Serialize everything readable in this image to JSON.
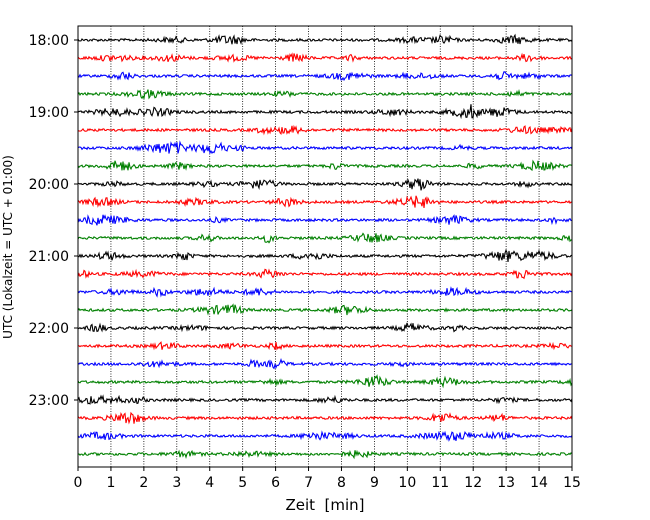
{
  "chart_data": {
    "type": "line",
    "title": "",
    "xlabel": "Zeit  [min]",
    "ylabel": "UTC (Lokalzeit = UTC + 01:00)",
    "xlim": [
      0,
      15
    ],
    "x_ticks": [
      0,
      1,
      2,
      3,
      4,
      5,
      6,
      7,
      8,
      9,
      10,
      11,
      12,
      13,
      14,
      15
    ],
    "x_tick_labels": [
      "0",
      "1",
      "2",
      "3",
      "4",
      "5",
      "6",
      "7",
      "8",
      "9",
      "10",
      "11",
      "12",
      "13",
      "14",
      "15"
    ],
    "y_tick_labels": [
      "18:00",
      "19:00",
      "20:00",
      "21:00",
      "22:00",
      "23:00"
    ],
    "y_direction": "top-to-bottom",
    "trace_interval_minutes": 15,
    "start_time": "18:00",
    "end_time": "23:45",
    "trace_start_times": [
      "18:00",
      "18:15",
      "18:30",
      "18:45",
      "19:00",
      "19:15",
      "19:30",
      "19:45",
      "20:00",
      "20:15",
      "20:30",
      "20:45",
      "21:00",
      "21:15",
      "21:30",
      "21:45",
      "22:00",
      "22:15",
      "22:30",
      "22:45",
      "23:00",
      "23:15",
      "23:30",
      "23:45"
    ],
    "trace_color_cycle": [
      "#000000",
      "#ff0000",
      "#0000ff",
      "#008000"
    ],
    "grid": "vertical dotted at each minute",
    "legend": "none"
  }
}
